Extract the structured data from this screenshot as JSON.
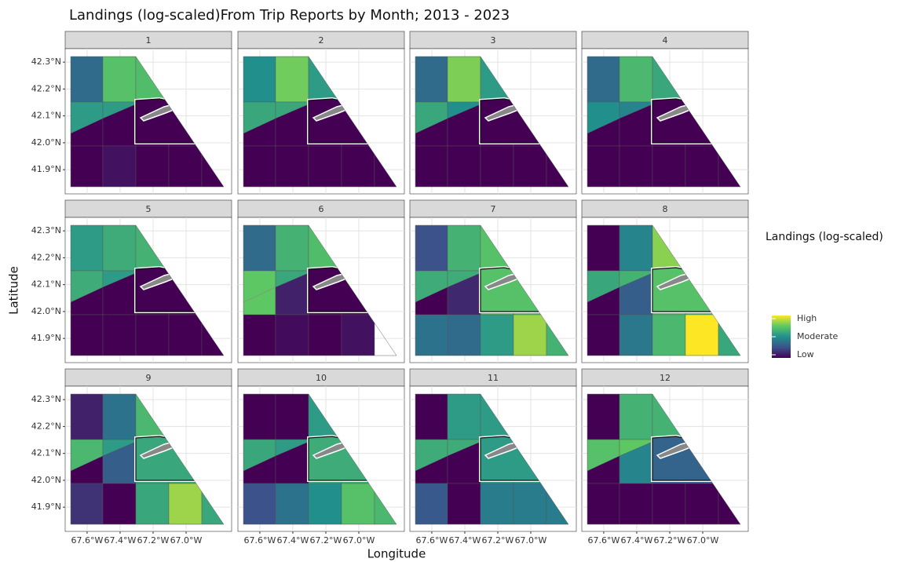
{
  "chart_data": {
    "type": "facet-map",
    "title": "Landings (log-scaled)From Trip Reports by Month; 2013 - 2023",
    "x_label": "Longitude",
    "y_label": "Latitude",
    "xlim": [
      -67.733,
      -66.724
    ],
    "ylim": [
      41.81,
      42.35
    ],
    "xticks": [
      {
        "value": -67.6,
        "label": "67.6°W"
      },
      {
        "value": -67.4,
        "label": "67.4°W"
      },
      {
        "value": -67.2,
        "label": "67.2°W"
      },
      {
        "value": -67.0,
        "label": "67.0°W"
      }
    ],
    "yticks": [
      {
        "value": 42.3,
        "label": "42.3°N"
      },
      {
        "value": 42.2,
        "label": "42.2°N"
      },
      {
        "value": 42.1,
        "label": "42.1°N"
      },
      {
        "value": 42.0,
        "label": "42.0°N"
      },
      {
        "value": 41.9,
        "label": "41.9°N"
      }
    ],
    "grid": true,
    "legend": {
      "title": "Landings (log-scaled)",
      "range": [
        0,
        1
      ],
      "colormap": "viridis",
      "ticks": [
        {
          "value": 1,
          "label": "High"
        },
        {
          "value": 0.5,
          "label": "Moderate"
        },
        {
          "value": 0,
          "label": "Low"
        }
      ]
    },
    "facets": [
      {
        "label": "1",
        "row1": [
          0.35,
          0.72,
          0.7
        ],
        "row2_offshore": [
          0.55,
          0.55
        ],
        "row2_inshore": [
          0,
          0,
          0,
          0,
          0
        ],
        "row3": [
          0,
          0.05,
          0,
          0,
          0
        ],
        "closed_area": 0
      },
      {
        "label": "2",
        "row1": [
          0.5,
          0.78,
          0.55
        ],
        "row2_offshore": [
          0.6,
          0.6
        ],
        "row2_inshore": [
          0,
          0,
          0,
          0,
          0
        ],
        "row3": [
          0,
          0,
          0,
          0,
          0
        ],
        "closed_area": 0
      },
      {
        "label": "3",
        "row1": [
          0.35,
          0.8,
          0.55
        ],
        "row2_offshore": [
          0.6,
          0.5
        ],
        "row2_inshore": [
          0,
          0,
          0,
          0,
          0
        ],
        "row3": [
          0,
          0,
          0,
          0,
          0
        ],
        "closed_area": 0
      },
      {
        "label": "4",
        "row1": [
          0.35,
          0.68,
          0.6
        ],
        "row2_offshore": [
          0.5,
          0.45
        ],
        "row2_inshore": [
          0,
          0,
          0,
          0,
          0
        ],
        "row3": [
          0,
          0,
          0,
          0,
          0
        ],
        "closed_area": 0
      },
      {
        "label": "5",
        "row1": [
          0.55,
          0.62,
          0.65
        ],
        "row2_offshore": [
          0.62,
          0.55
        ],
        "row2_inshore": [
          0,
          0,
          0,
          0,
          0
        ],
        "row3": [
          0,
          0,
          0,
          0,
          0
        ],
        "closed_area": 0
      },
      {
        "label": "6",
        "row1": [
          0.35,
          0.65,
          0.7
        ],
        "row2_offshore": [
          0.75,
          0.6
        ],
        "row2_inshore": [
          null,
          0.1,
          0,
          0,
          0
        ],
        "row3": [
          0,
          0.03,
          0,
          0.05,
          null
        ],
        "closed_area": 0
      },
      {
        "label": "7",
        "row1": [
          0.25,
          0.65,
          0.72
        ],
        "row2_offshore": [
          0.62,
          0.62
        ],
        "row2_inshore": [
          0,
          0.12,
          0.72,
          0.72,
          0.72
        ],
        "row3": [
          0.38,
          0.35,
          0.55,
          0.85,
          0.65
        ],
        "closed_area": 0.72
      },
      {
        "label": "8",
        "row1": [
          0,
          0.45,
          0.82
        ],
        "row2_offshore": [
          0.6,
          0.65
        ],
        "row2_inshore": [
          0,
          0.3,
          0.72,
          0.72,
          0.72
        ],
        "row3": [
          0,
          0.4,
          0.68,
          1,
          0.6
        ],
        "closed_area": 0.72
      },
      {
        "label": "9",
        "row1": [
          0.1,
          0.38,
          0.68
        ],
        "row2_offshore": [
          0.68,
          0.55
        ],
        "row2_inshore": [
          0,
          0.3,
          0.6,
          0.6,
          0.6
        ],
        "row3": [
          0.15,
          0,
          0.6,
          0.85,
          0.6
        ],
        "closed_area": 0.6
      },
      {
        "label": "10",
        "row1": [
          0,
          0,
          0.55
        ],
        "row2_offshore": [
          0.6,
          0.55
        ],
        "row2_inshore": [
          0,
          0,
          0.62,
          0.62,
          0.62
        ],
        "row3": [
          0.25,
          0.38,
          0.5,
          0.72,
          0.68
        ],
        "closed_area": 0.62
      },
      {
        "label": "11",
        "row1": [
          0,
          0.55,
          0.55
        ],
        "row2_offshore": [
          0.62,
          0.62
        ],
        "row2_inshore": [
          0,
          0,
          0.55,
          0.55,
          0.55
        ],
        "row3": [
          0.28,
          0,
          0.42,
          0.42,
          0.42
        ],
        "closed_area": 0.55
      },
      {
        "label": "12",
        "row1": [
          0,
          0.65,
          0.65
        ],
        "row2_offshore": [
          0.72,
          0.75
        ],
        "row2_inshore": [
          0,
          0.45,
          0.32,
          0.32,
          0.32
        ],
        "row3": [
          0,
          0,
          0,
          0,
          0
        ],
        "closed_area": 0.32
      }
    ]
  }
}
